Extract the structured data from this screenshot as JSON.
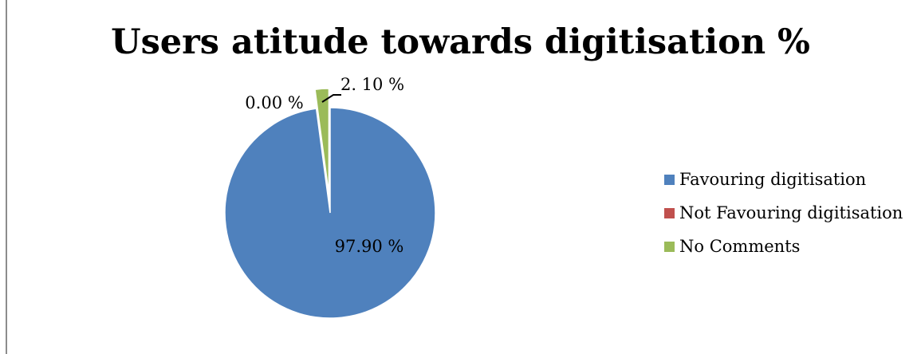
{
  "chart_data": {
    "type": "pie",
    "title": "Users atitude towards digitisation %",
    "categories": [
      "Favouring digitisation",
      "Not Favouring digitisation",
      "No Comments"
    ],
    "values": [
      97.9,
      0.0,
      2.1
    ],
    "data_labels": [
      "97.90 %",
      "0.00 %",
      "2. 10 %"
    ],
    "colors": [
      "#4F81BD",
      "#C0504D",
      "#9BBB59"
    ],
    "legend_position": "right"
  }
}
